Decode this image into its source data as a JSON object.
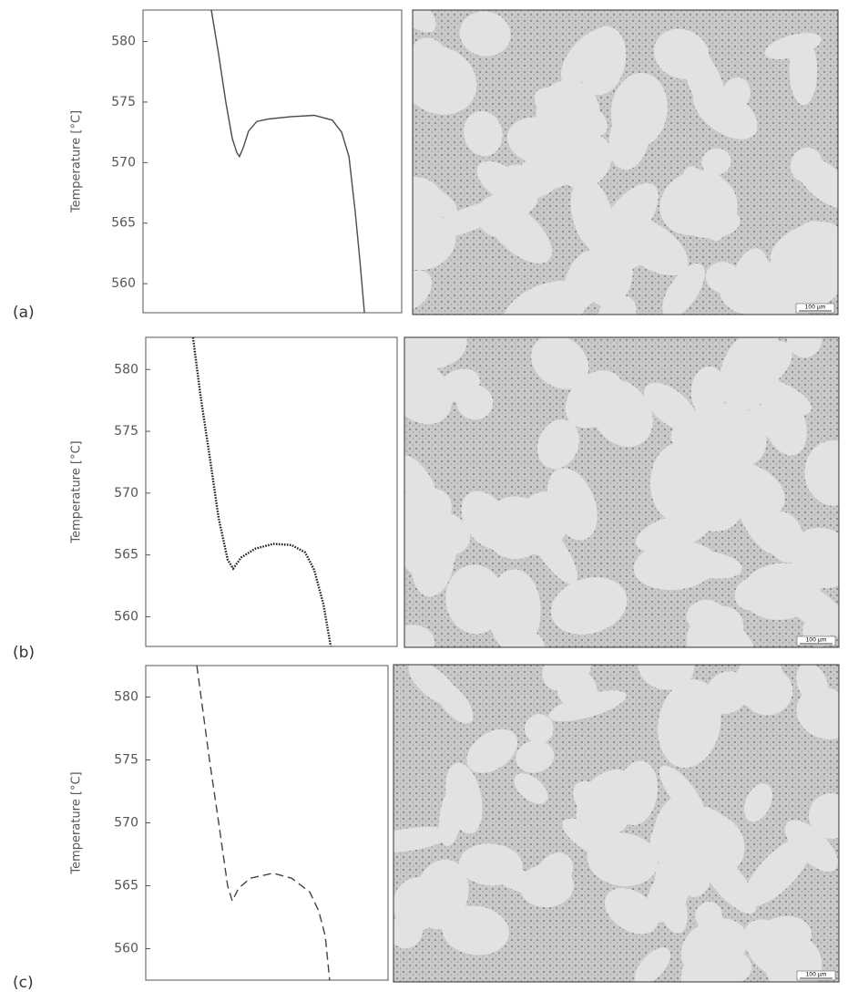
{
  "chart_data": [
    {
      "type": "line",
      "panel_label": "(a)",
      "y_label": "Temperature [°C]",
      "line_style": "solid",
      "color": "#4a4a4a",
      "x": [
        26.4,
        29.2,
        32.0,
        34.5,
        36.3,
        37.3,
        38.7,
        40.8,
        44.0,
        48.6,
        57.4,
        66.2,
        73.2,
        76.8,
        79.6,
        82.0,
        83.8,
        85.6
      ],
      "values": [
        582.6,
        579,
        575,
        572,
        570.8,
        570.5,
        571.2,
        572.6,
        573.4,
        573.6,
        573.8,
        573.9,
        573.5,
        572.5,
        570.5,
        566,
        562,
        557.6
      ],
      "xlim": [
        0,
        100
      ],
      "ylim": [
        557.6,
        582.6
      ],
      "yticks": [
        560,
        565,
        570,
        575,
        580
      ],
      "scale_bar": "100 µm"
    },
    {
      "type": "line",
      "panel_label": "(b)",
      "y_label": "Temperature [°C]",
      "line_style": "dotted",
      "color": "#222222",
      "x": [
        18.8,
        21.7,
        25.4,
        29.0,
        32.6,
        34.8,
        38.0,
        43.5,
        50.7,
        58.0,
        63.4,
        67.0,
        70.7,
        73.6
      ],
      "values": [
        582.6,
        578,
        573,
        568,
        564.6,
        563.9,
        564.8,
        565.5,
        565.9,
        565.8,
        565.2,
        563.8,
        561,
        557.6
      ],
      "xlim": [
        0,
        100
      ],
      "ylim": [
        557.6,
        582.6
      ],
      "yticks": [
        560,
        565,
        570,
        575,
        580
      ],
      "scale_bar": "100 µm"
    },
    {
      "type": "line",
      "panel_label": "(c)",
      "y_label": "Temperature [°C]",
      "line_style": "dashed",
      "color": "#444444",
      "x": [
        21.1,
        26.3,
        30.1,
        33.8,
        35.7,
        38.3,
        43.2,
        52.6,
        60.2,
        67.7,
        71.4,
        74.1,
        75.9
      ],
      "values": [
        582.5,
        575,
        570,
        565,
        563.8,
        564.8,
        565.6,
        566.0,
        565.6,
        564.5,
        563,
        561,
        557.5
      ],
      "xlim": [
        0,
        100
      ],
      "ylim": [
        557.5,
        582.5
      ],
      "yticks": [
        560,
        565,
        570,
        575,
        580
      ],
      "scale_bar": "100 µm"
    }
  ]
}
